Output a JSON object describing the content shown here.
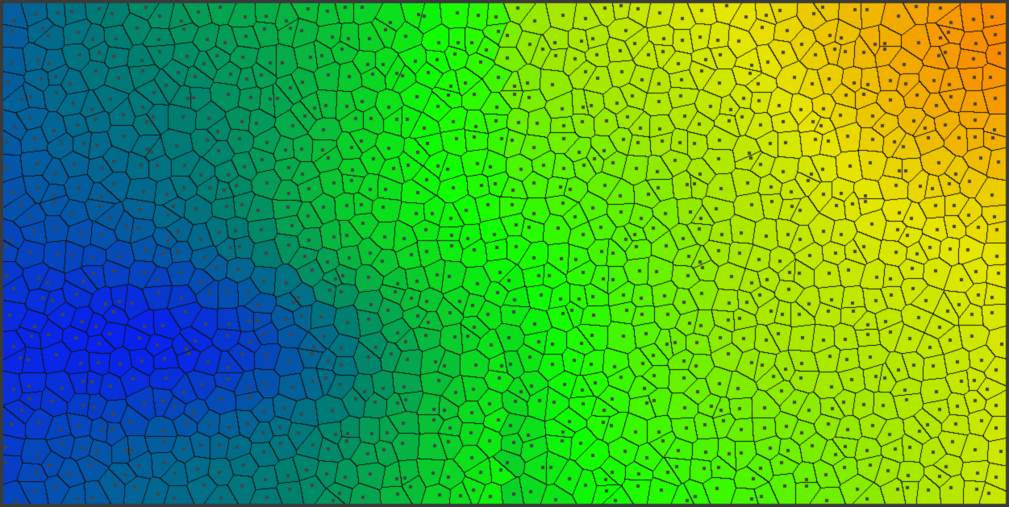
{
  "visualization": {
    "kind": "voronoi-diagram",
    "site_count": 1100,
    "random_seed": 20240611,
    "gradient_colors": {
      "blue": "#0a20f0",
      "teal": "#008070",
      "green": "#10ff00",
      "lime": "#a0e800",
      "yellow": "#e6e600",
      "orange": "#ff6a00"
    },
    "cell_border_color": "#111111",
    "site_dot_color": "#444444",
    "frame_border_color": "#3a3a3a"
  }
}
